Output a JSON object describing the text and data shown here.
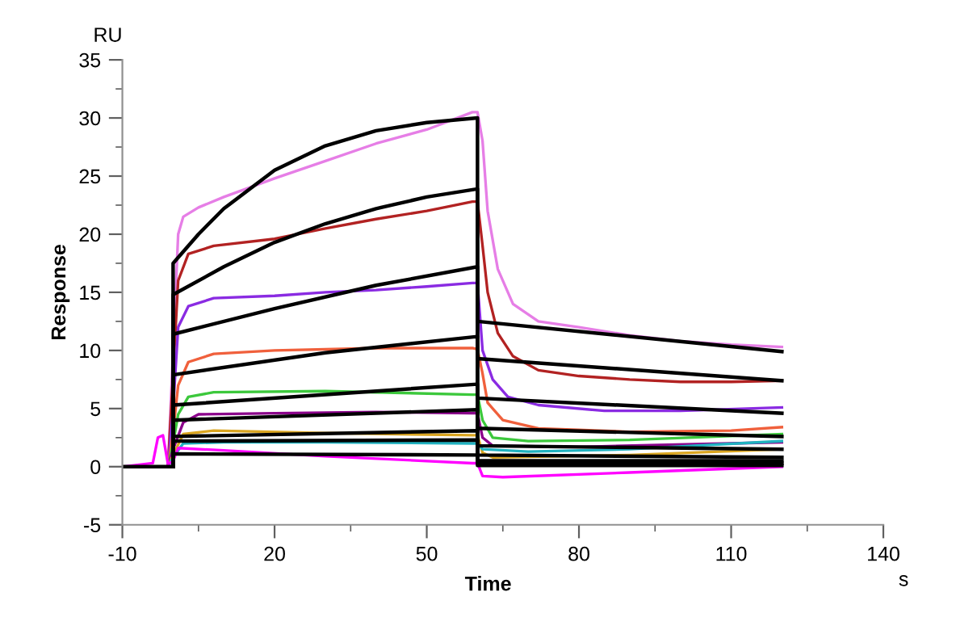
{
  "chart_data": {
    "type": "line",
    "xlabel": "Time",
    "ylabel": "Response",
    "annotations": [
      "RU",
      "s"
    ],
    "xlim": [
      -10,
      140
    ],
    "xticks": [
      -10,
      {
        "value": 5,
        "label": null
      },
      20,
      {
        "value": 35,
        "label": null
      },
      50,
      {
        "value": 65,
        "label": null
      },
      80,
      {
        "value": 95,
        "label": null
      },
      110,
      {
        "value": 125,
        "label": null
      },
      140
    ],
    "ylim": [
      -5,
      35
    ],
    "yticks": [
      -5,
      {
        "value": -2.5,
        "label": null
      },
      0,
      {
        "value": 2.5,
        "label": null
      },
      5,
      {
        "value": 7.5,
        "label": null
      },
      10,
      {
        "value": 12.5,
        "label": null
      },
      15,
      {
        "value": 17.5,
        "label": null
      },
      20,
      {
        "value": 22.5,
        "label": null
      },
      25,
      {
        "value": 27.5,
        "label": null
      },
      30,
      {
        "value": 32.5,
        "label": null
      },
      35
    ],
    "grid": false,
    "legend": false,
    "line_style": "solid",
    "marker": "none",
    "series": [
      {
        "color": "#e67ee6",
        "x": [
          -10,
          -1,
          0,
          1,
          2,
          5,
          10,
          20,
          30,
          40,
          50,
          59,
          60,
          61,
          62,
          64,
          67,
          72,
          80,
          90,
          100,
          110,
          120
        ],
        "values": [
          0,
          0,
          10,
          20,
          21.5,
          22.3,
          23.2,
          24.8,
          26.3,
          27.8,
          29,
          30.5,
          30.5,
          28,
          22,
          17,
          14,
          12.5,
          12,
          11.3,
          10.8,
          10.5,
          10.3
        ]
      },
      {
        "color": "#b22222",
        "x": [
          -10,
          -1,
          0,
          1,
          3,
          8,
          20,
          30,
          40,
          50,
          59,
          60,
          61,
          62,
          64,
          67,
          72,
          80,
          90,
          100,
          110,
          120
        ],
        "values": [
          0,
          0,
          8,
          16,
          18.3,
          19,
          19.6,
          20.5,
          21.3,
          22,
          22.8,
          22.8,
          19,
          15,
          11.5,
          9.5,
          8.3,
          7.8,
          7.5,
          7.3,
          7.3,
          7.4
        ]
      },
      {
        "color": "#8a2be2",
        "x": [
          -10,
          -1,
          0,
          1,
          3,
          8,
          20,
          30,
          40,
          50,
          59,
          60,
          61,
          63,
          66,
          72,
          85,
          100,
          120
        ],
        "values": [
          0,
          0,
          5,
          12,
          13.8,
          14.5,
          14.7,
          15,
          15.2,
          15.5,
          15.8,
          15.8,
          10,
          7.5,
          6,
          5.3,
          4.8,
          4.8,
          5.1
        ]
      },
      {
        "color": "#f0603c",
        "x": [
          -10,
          -1,
          0,
          1,
          3,
          8,
          20,
          40,
          59,
          60,
          61,
          62,
          65,
          72,
          90,
          110,
          120
        ],
        "values": [
          0,
          0,
          3,
          7,
          9,
          9.7,
          10,
          10.2,
          10.2,
          10.1,
          8,
          5.5,
          4,
          3.3,
          3,
          3.1,
          3.4
        ]
      },
      {
        "color": "#3cc83c",
        "x": [
          -10,
          -1,
          0,
          1,
          3,
          8,
          30,
          59,
          60,
          61,
          63,
          70,
          90,
          120
        ],
        "values": [
          0,
          0,
          2,
          4.5,
          6,
          6.4,
          6.5,
          6.2,
          6.2,
          4,
          2.5,
          2.2,
          2.3,
          2.8
        ]
      },
      {
        "color": "#8b008b",
        "x": [
          -10,
          -1,
          0,
          2,
          5,
          20,
          40,
          59,
          60,
          61,
          63,
          80,
          120
        ],
        "values": [
          0,
          0,
          1.5,
          3.8,
          4.5,
          4.6,
          4.7,
          4.6,
          4.6,
          2.5,
          1.8,
          1.7,
          2.1
        ]
      },
      {
        "color": "#daa520",
        "x": [
          -10,
          -1,
          0,
          2,
          8,
          30,
          59,
          60,
          61,
          63,
          90,
          120
        ],
        "values": [
          0,
          0,
          1,
          2.8,
          3.1,
          2.9,
          2.7,
          2.7,
          1.2,
          0.8,
          1,
          1.5
        ]
      },
      {
        "color": "#20b2c0",
        "x": [
          -10,
          -1,
          0,
          2,
          10,
          30,
          59,
          60,
          61,
          70,
          90,
          120
        ],
        "values": [
          0,
          0,
          0.8,
          2,
          2.1,
          2.1,
          2,
          2,
          1.5,
          1.3,
          1.5,
          2.2
        ]
      },
      {
        "color": "#ff00ff",
        "x": [
          -10,
          -4,
          -3,
          -2,
          -1,
          0,
          1,
          10,
          30,
          59,
          60,
          61,
          65,
          90,
          120
        ],
        "values": [
          0,
          0.3,
          2.5,
          2.7,
          0.2,
          0.5,
          1.6,
          1.4,
          0.9,
          0.3,
          0.3,
          -0.8,
          -0.9,
          -0.5,
          0
        ]
      },
      {
        "color": "#000000",
        "x": [
          -10,
          0,
          0,
          5,
          10,
          20,
          30,
          40,
          50,
          60,
          60,
          120
        ],
        "values": [
          0,
          0,
          17.5,
          20,
          22.2,
          25.5,
          27.6,
          28.9,
          29.6,
          30,
          12.5,
          9.9
        ]
      },
      {
        "color": "#000000",
        "x": [
          0,
          0,
          10,
          20,
          30,
          40,
          50,
          60,
          60,
          120
        ],
        "values": [
          0,
          14.8,
          17.2,
          19.3,
          20.9,
          22.2,
          23.2,
          23.9,
          9.3,
          7.4
        ]
      },
      {
        "color": "#000000",
        "x": [
          0,
          0,
          20,
          40,
          60,
          60,
          120
        ],
        "values": [
          0,
          11.4,
          13.6,
          15.6,
          17.2,
          5.9,
          4.6
        ]
      },
      {
        "color": "#000000",
        "x": [
          0,
          0,
          30,
          60,
          60,
          120
        ],
        "values": [
          0,
          7.9,
          9.8,
          11.2,
          3.3,
          2.6
        ]
      },
      {
        "color": "#000000",
        "x": [
          0,
          0,
          60,
          60,
          120
        ],
        "values": [
          0,
          5.3,
          7.1,
          1.8,
          1.5
        ]
      },
      {
        "color": "#000000",
        "x": [
          0,
          0,
          60,
          60,
          120
        ],
        "values": [
          0,
          4,
          4.9,
          1,
          0.8
        ]
      },
      {
        "color": "#000000",
        "x": [
          0,
          0,
          60,
          60,
          120
        ],
        "values": [
          0,
          2.6,
          3.1,
          0.5,
          0.5
        ]
      },
      {
        "color": "#000000",
        "x": [
          0,
          0,
          60,
          60,
          120
        ],
        "values": [
          0,
          2.2,
          2.3,
          0.3,
          0.3
        ]
      },
      {
        "color": "#000000",
        "x": [
          0,
          0,
          60,
          60,
          120
        ],
        "values": [
          0,
          1.1,
          1,
          0.1,
          0.1
        ]
      }
    ]
  }
}
